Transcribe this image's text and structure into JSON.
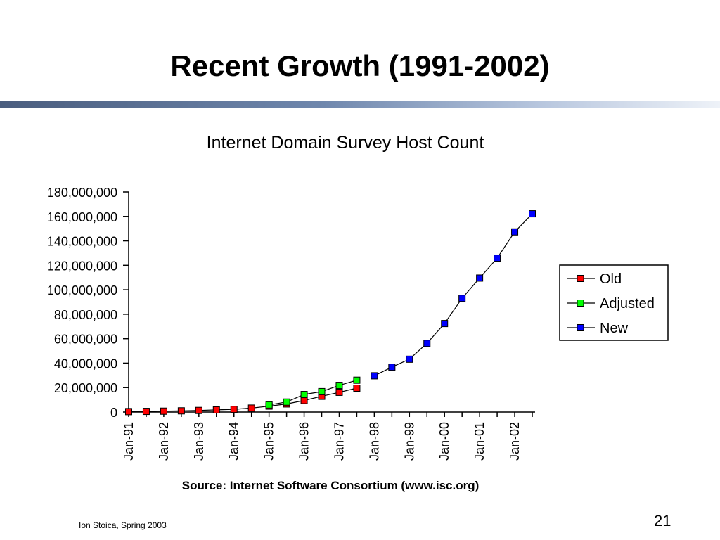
{
  "slide": {
    "title": "Recent Growth (1991-2002)",
    "footer": "Ion Stoica, Spring 2003",
    "page_number": "21",
    "stray_mark": "–"
  },
  "colors": {
    "title_rule_start": "#4a5d7e",
    "title_rule_end": "#eef2f8",
    "old": "#ff0000",
    "adjusted": "#00ff00",
    "new": "#0000ff"
  },
  "chart_data": {
    "type": "line",
    "title": "Internet Domain Survey Host Count",
    "source": "Source: Internet Software Consortium (www.isc.org)",
    "ylim": [
      0,
      180000000
    ],
    "yticks": [
      "180,000,000",
      "160,000,000",
      "140,000,000",
      "120,000,000",
      "100,000,000",
      "80,000,000",
      "60,000,000",
      "40,000,000",
      "20,000,000",
      "0"
    ],
    "ytick_values": [
      180000000,
      160000000,
      140000000,
      120000000,
      100000000,
      80000000,
      60000000,
      40000000,
      20000000,
      0
    ],
    "xlabels": [
      "Jan-91",
      "Jan-92",
      "Jan-93",
      "Jan-94",
      "Jan-95",
      "Jan-96",
      "Jan-97",
      "Jan-98",
      "Jan-99",
      "Jan-00",
      "Jan-01",
      "Jan-02"
    ],
    "x_range": [
      1991.0,
      2002.5
    ],
    "legend_position": "right",
    "grid": false,
    "series": [
      {
        "name": "Old",
        "color": "#ff0000",
        "x": [
          1991.0,
          1991.5,
          1992.0,
          1992.5,
          1993.0,
          1993.5,
          1994.0,
          1994.5,
          1995.0,
          1995.5,
          1996.0,
          1996.5,
          1997.0,
          1997.5
        ],
        "values": [
          376000,
          535000,
          727000,
          992000,
          1313000,
          1776000,
          2217000,
          3212000,
          4852000,
          6642000,
          9472000,
          12881000,
          16146000,
          19540000
        ]
      },
      {
        "name": "Adjusted",
        "color": "#00ff00",
        "x": [
          1995.0,
          1995.5,
          1996.0,
          1996.5,
          1997.0,
          1997.5
        ],
        "values": [
          5846000,
          8200000,
          14352000,
          16729000,
          21819000,
          26053000
        ]
      },
      {
        "name": "New",
        "color": "#0000ff",
        "x": [
          1998.0,
          1998.5,
          1999.0,
          1999.5,
          2000.0,
          2000.5,
          2001.0,
          2001.5,
          2002.0,
          2002.5
        ],
        "values": [
          29670000,
          36739000,
          43230000,
          56218000,
          72398000,
          93047000,
          109574000,
          125888000,
          147345000,
          162128000
        ]
      }
    ]
  }
}
